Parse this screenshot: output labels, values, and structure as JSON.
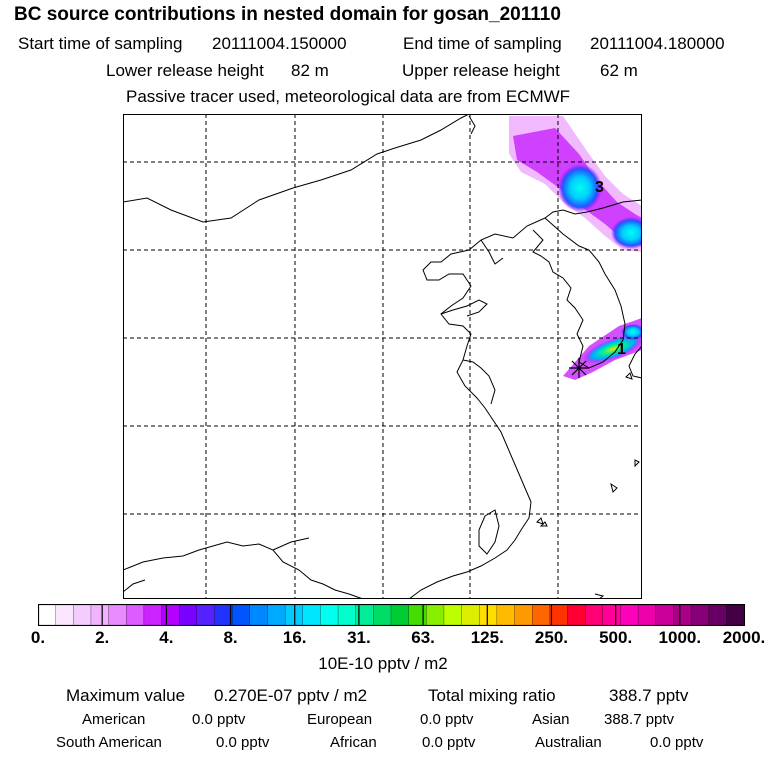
{
  "header": {
    "title": "BC  source contributions in nested domain for gosan_201110",
    "start_label": "Start time of sampling",
    "start_value": "20111004.150000",
    "end_label": "End time of sampling",
    "end_value": "20111004.180000",
    "lower_label": "Lower release height",
    "lower_value": "82 m",
    "upper_label": "Upper release height",
    "upper_value": "62 m",
    "tracer_note": "Passive tracer used, meteorological data are from ECMWF"
  },
  "chart_data": {
    "type": "heatmap",
    "title": "BC  source contributions in nested domain for gosan_201110",
    "units": "10E-10 pptv / m2",
    "colorbar_ticks": [
      "0.",
      "2.",
      "4.",
      "8.",
      "16.",
      "31.",
      "63.",
      "125.",
      "250.",
      "500.",
      "1000.",
      "2000."
    ],
    "colorbar_colors": [
      "#ffffff",
      "#fbe6ff",
      "#f5ccff",
      "#efb3ff",
      "#e98aff",
      "#dd5cff",
      "#cc22ff",
      "#b300ff",
      "#7a00ff",
      "#5522ff",
      "#2233ff",
      "#0055ff",
      "#0088ff",
      "#00aaff",
      "#00ccff",
      "#00e6ff",
      "#00ffee",
      "#00ffcc",
      "#00ee99",
      "#00dd66",
      "#00cc33",
      "#44dd00",
      "#88ee00",
      "#bbff00",
      "#ddee00",
      "#ffdd00",
      "#ffbb00",
      "#ff9900",
      "#ff6600",
      "#ff3300",
      "#ff0033",
      "#ff0077",
      "#ff0099",
      "#ff00bb",
      "#ee00aa",
      "#cc0099",
      "#aa0088",
      "#880077",
      "#660066",
      "#440044"
    ],
    "receptor_marker": "gosan",
    "plume_labels": [
      "3",
      "1"
    ]
  },
  "stats": {
    "max_label": "Maximum value",
    "max_value": "0.270E-07 pptv / m2",
    "total_label": "Total mixing ratio",
    "total_value": "388.7 pptv",
    "american_label": "American",
    "american_value": "0.0 pptv",
    "european_label": "European",
    "european_value": "0.0 pptv",
    "asian_label": "Asian",
    "asian_value": "388.7 pptv",
    "south_american_label": "South American",
    "south_american_value": "0.0 pptv",
    "african_label": "African",
    "african_value": "0.0 pptv",
    "australian_label": "Australian",
    "australian_value": "0.0 pptv"
  }
}
